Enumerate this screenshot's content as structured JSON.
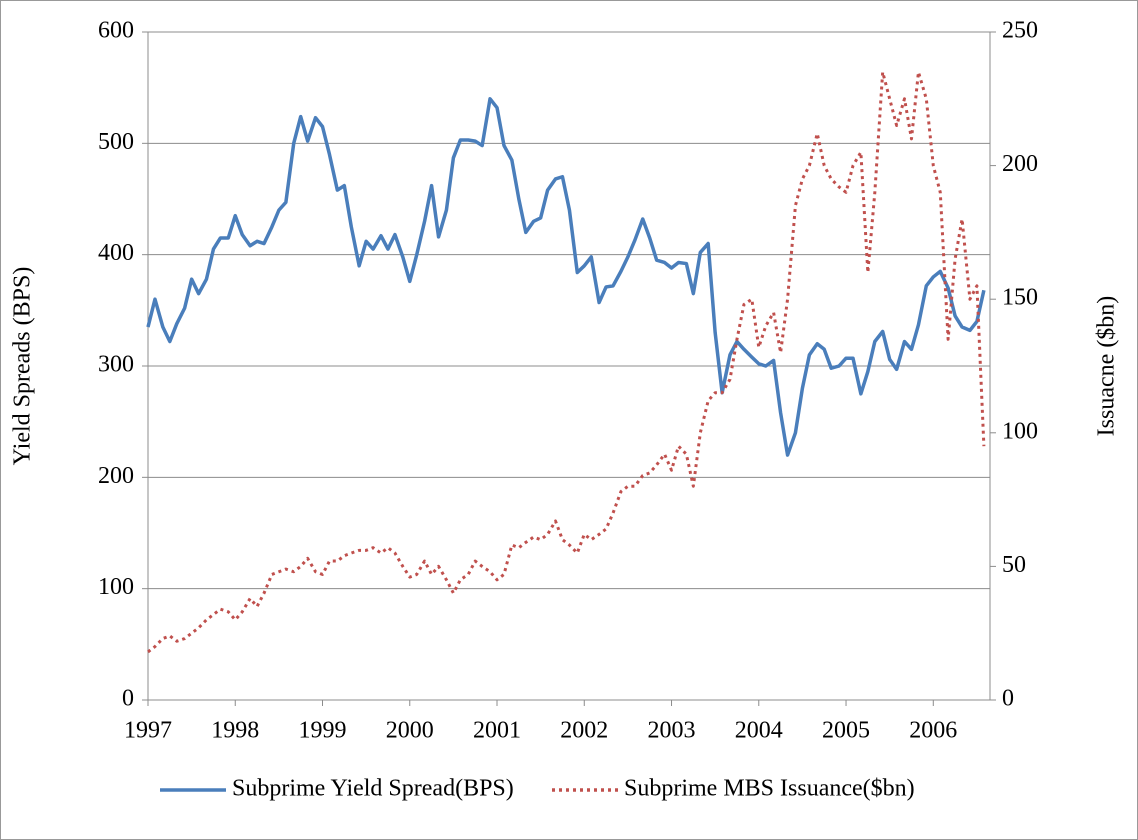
{
  "chart_data": {
    "type": "line",
    "y_label": "Yield Spreads (BPS)",
    "y2_label": "Issuacne ($bn)",
    "x": [
      1997,
      1997.08,
      1997.17,
      1997.25,
      1997.33,
      1997.42,
      1997.5,
      1997.58,
      1997.67,
      1997.75,
      1997.83,
      1997.92,
      1998,
      1998.08,
      1998.17,
      1998.25,
      1998.33,
      1998.42,
      1998.5,
      1998.58,
      1998.67,
      1998.75,
      1998.83,
      1998.92,
      1999,
      1999.08,
      1999.17,
      1999.25,
      1999.33,
      1999.42,
      1999.5,
      1999.58,
      1999.67,
      1999.75,
      1999.83,
      1999.92,
      2000,
      2000.08,
      2000.17,
      2000.25,
      2000.33,
      2000.42,
      2000.5,
      2000.58,
      2000.67,
      2000.75,
      2000.83,
      2000.92,
      2001,
      2001.08,
      2001.17,
      2001.25,
      2001.33,
      2001.42,
      2001.5,
      2001.58,
      2001.67,
      2001.75,
      2001.83,
      2001.92,
      2002,
      2002.08,
      2002.17,
      2002.25,
      2002.33,
      2002.42,
      2002.5,
      2002.58,
      2002.67,
      2002.75,
      2002.83,
      2002.92,
      2003,
      2003.08,
      2003.17,
      2003.25,
      2003.33,
      2003.42,
      2003.5,
      2003.58,
      2003.67,
      2003.75,
      2003.83,
      2003.92,
      2004,
      2004.08,
      2004.17,
      2004.25,
      2004.33,
      2004.42,
      2004.5,
      2004.58,
      2004.67,
      2004.75,
      2004.83,
      2004.92,
      2005,
      2005.08,
      2005.17,
      2005.25,
      2005.33,
      2005.42,
      2005.5,
      2005.58,
      2005.67,
      2005.75,
      2005.83,
      2005.92,
      2006,
      2006.08,
      2006.17,
      2006.25,
      2006.33,
      2006.42,
      2006.5,
      2006.58
    ],
    "series": [
      {
        "name": "Subprime Yield Spread(BPS)",
        "color": "#4a7ebb",
        "style": "solid",
        "values": [
          335,
          360,
          335,
          322,
          338,
          352,
          378,
          365,
          378,
          405,
          415,
          415,
          435,
          418,
          408,
          412,
          410,
          425,
          440,
          447,
          500,
          524,
          502,
          523,
          515,
          490,
          458,
          462,
          425,
          390,
          412,
          405,
          417,
          405,
          418,
          398,
          376,
          400,
          430,
          462,
          416,
          440,
          487,
          503,
          503,
          502,
          498,
          540,
          532,
          498,
          485,
          450,
          420,
          430,
          433,
          458,
          468,
          470,
          440,
          384,
          390,
          398,
          357,
          371,
          372,
          385,
          398,
          413,
          432,
          415,
          395,
          393,
          388,
          393,
          392,
          365,
          402,
          410,
          330,
          276,
          310,
          322,
          315,
          308,
          302,
          300,
          305,
          258,
          220,
          240,
          280,
          310,
          320,
          315,
          298,
          300,
          307,
          307,
          275,
          295,
          322,
          331,
          306,
          297,
          322,
          315,
          337,
          372,
          380,
          385,
          370,
          345,
          335,
          332,
          340,
          368
        ]
      },
      {
        "name": "Subprime MBS Issuance($bn)",
        "color": "#c0504d",
        "style": "dotted",
        "axis": "y2",
        "values": [
          18,
          20,
          23,
          24,
          22,
          23,
          25,
          27,
          30,
          32,
          34,
          33,
          30,
          33,
          38,
          35,
          40,
          47,
          48,
          49,
          48,
          50,
          53,
          48,
          47,
          52,
          52,
          54,
          55,
          56,
          56,
          57,
          55,
          57,
          55,
          50,
          46,
          47,
          52,
          47,
          50,
          45,
          40,
          45,
          47,
          52,
          50,
          48,
          45,
          47,
          58,
          57,
          59,
          61,
          60,
          62,
          67,
          60,
          58,
          55,
          62,
          60,
          62,
          64,
          70,
          78,
          80,
          80,
          84,
          85,
          88,
          92,
          86,
          95,
          92,
          80,
          100,
          112,
          115,
          115,
          120,
          135,
          148,
          150,
          132,
          140,
          145,
          130,
          150,
          185,
          195,
          200,
          212,
          200,
          195,
          192,
          190,
          200,
          205,
          160,
          190,
          235,
          225,
          215,
          225,
          210,
          235,
          225,
          200,
          190,
          135,
          165,
          180,
          150,
          155,
          95
        ]
      }
    ],
    "xlim": [
      1997,
      2006.65
    ],
    "xticks": [
      1997,
      1998,
      1999,
      2000,
      2001,
      2002,
      2003,
      2004,
      2005,
      2006
    ],
    "ylim": [
      0,
      600
    ],
    "yticks": [
      0,
      100,
      200,
      300,
      400,
      500,
      600
    ],
    "y2lim": [
      0,
      250
    ],
    "y2ticks": [
      0,
      50,
      100,
      150,
      200,
      250
    ],
    "grid": true,
    "legend": "bottom"
  }
}
